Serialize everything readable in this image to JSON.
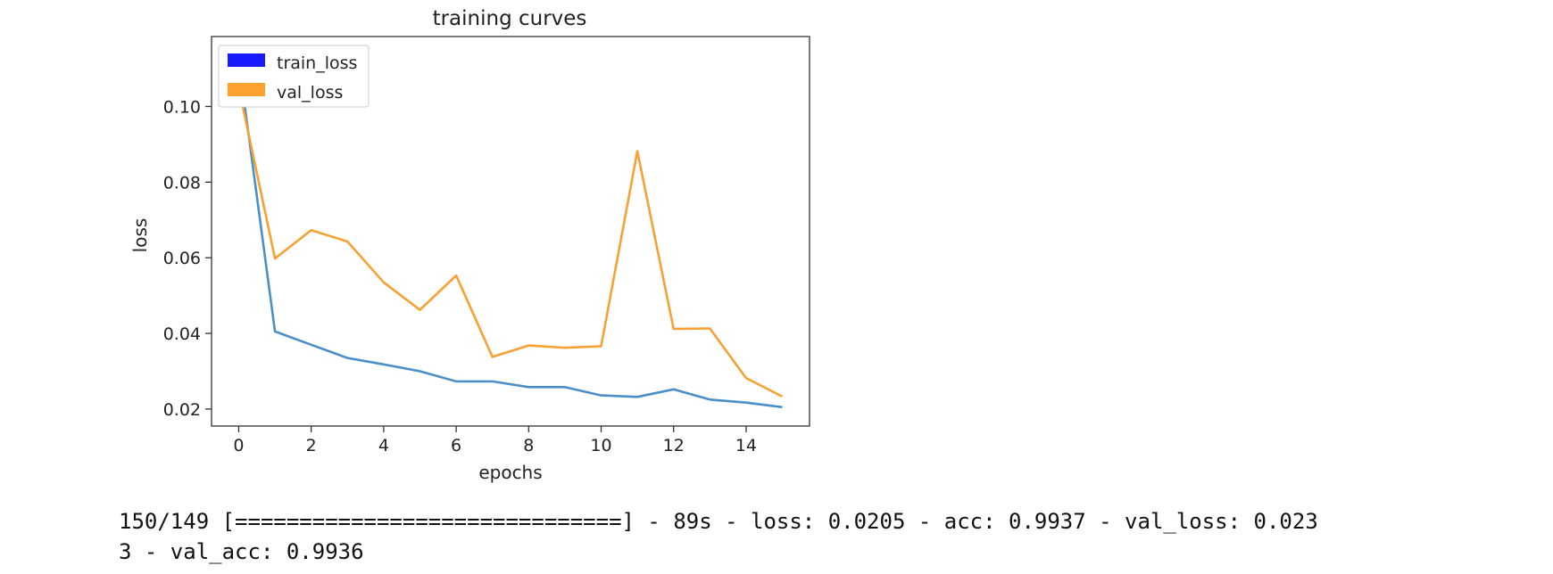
{
  "chart_data": {
    "type": "line",
    "title": "training curves",
    "xlabel": "epochs",
    "ylabel": "loss",
    "xlim": [
      -0.75,
      15.75
    ],
    "ylim": [
      0.0155,
      0.1185
    ],
    "xticks": [
      0,
      2,
      4,
      6,
      8,
      10,
      12,
      14
    ],
    "xtick_labels": [
      "0",
      "2",
      "4",
      "6",
      "8",
      "10",
      "12",
      "14"
    ],
    "yticks": [
      0.02,
      0.04,
      0.06,
      0.08,
      0.1
    ],
    "ytick_labels": [
      "0.02",
      "0.04",
      "0.06",
      "0.08",
      "0.10"
    ],
    "x": [
      0,
      1,
      2,
      3,
      4,
      5,
      6,
      7,
      8,
      9,
      10,
      11,
      12,
      13,
      14,
      15
    ],
    "series": [
      {
        "name": "train_loss",
        "color": "#4a8fc7",
        "legend_color": "#1a1aff",
        "values": [
          0.112,
          0.0405,
          0.037,
          0.0335,
          0.0318,
          0.03,
          0.0273,
          0.0273,
          0.0258,
          0.0258,
          0.0236,
          0.0232,
          0.0252,
          0.0225,
          0.0217,
          0.0205
        ]
      },
      {
        "name": "val_loss",
        "color": "#f8a032",
        "legend_color": "#fca12d",
        "values": [
          0.105,
          0.0598,
          0.0673,
          0.0643,
          0.0535,
          0.0462,
          0.0553,
          0.0338,
          0.0368,
          0.0362,
          0.0366,
          0.0882,
          0.0412,
          0.0413,
          0.0282,
          0.0233
        ]
      }
    ],
    "legend_position": "upper-left",
    "grid": false
  },
  "log": {
    "line1": "150/149 [==============================] - 89s - loss: 0.0205 - acc: 0.9937 - val_loss: 0.023",
    "line2": "3 - val_acc: 0.9936"
  }
}
